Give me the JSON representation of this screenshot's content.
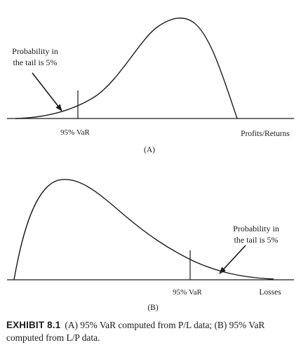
{
  "panel_a": {
    "callout": [
      "Probability in",
      "the tail is 5%"
    ],
    "var_label": "95% VaR",
    "axis_label": "Profits/Returns",
    "panel_label": "(A)"
  },
  "panel_b": {
    "callout": [
      "Probability in",
      "the tail is 5%"
    ],
    "var_label": "95% VaR",
    "axis_label": "Losses",
    "panel_label": "(B)"
  },
  "caption": {
    "exhibit": "EXHIBIT 8.1",
    "text": "(A) 95% VaR computed from P/L data; (B) 95% VaR computed from L/P data."
  }
}
